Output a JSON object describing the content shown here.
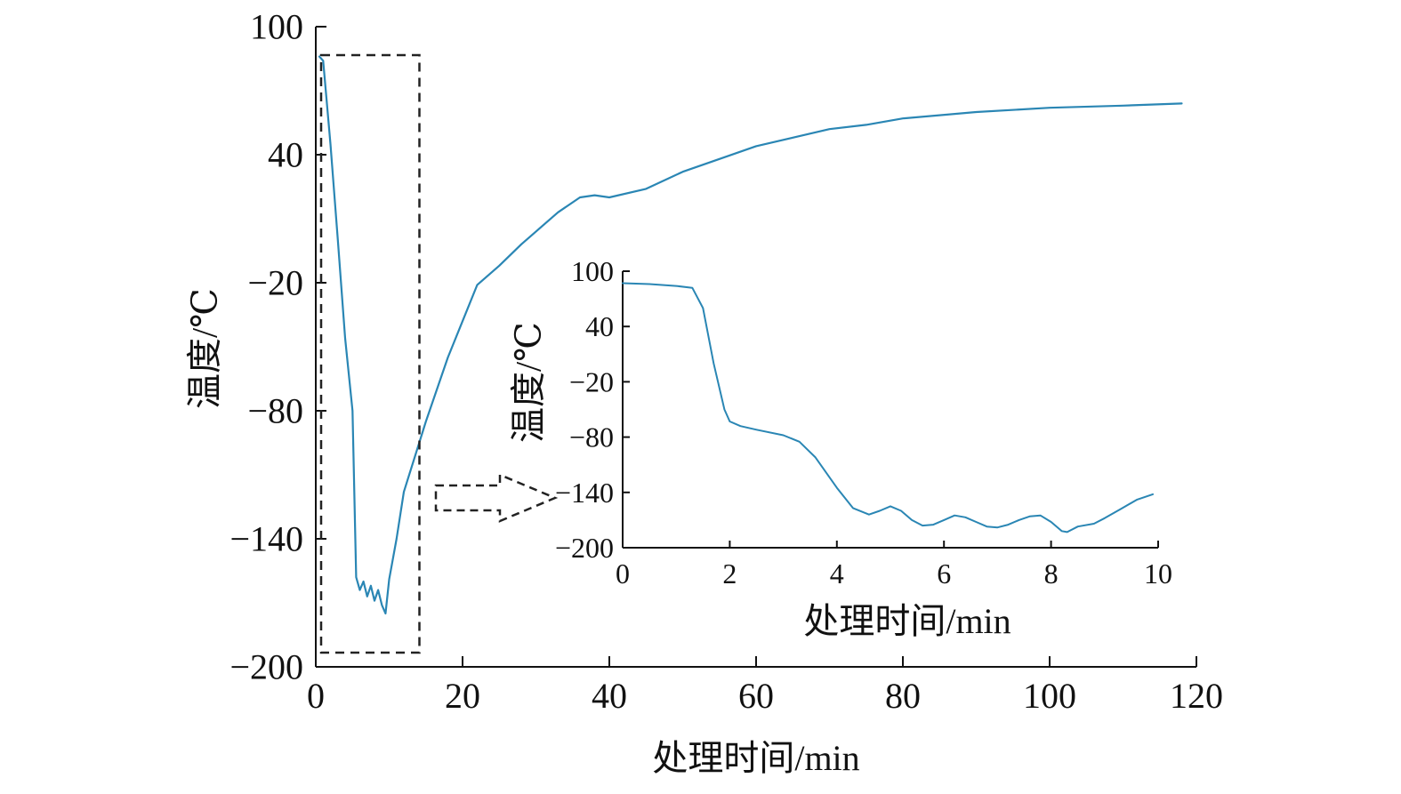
{
  "chart_data": [
    {
      "type": "line",
      "xlabel": "处理时间/min",
      "ylabel": "温度/℃",
      "xlim": [
        0,
        120
      ],
      "ylim": [
        -200,
        100
      ],
      "xticks": [
        0,
        20,
        40,
        60,
        80,
        100,
        120
      ],
      "yticks": [
        100,
        40,
        -20,
        -80,
        -140,
        -200
      ],
      "xtick_labels": [
        "0",
        "20",
        "40",
        "60",
        "80",
        "100",
        "120"
      ],
      "ytick_labels": [
        "100",
        "40",
        "−20",
        "−80",
        "−140",
        "−200"
      ],
      "grid": false,
      "line_color": "#2a86b4",
      "highlight": {
        "shape": "dashed-rectangle",
        "x_range": [
          0,
          10
        ]
      },
      "series": [
        {
          "x": [
            0.5,
            1,
            2,
            3,
            4,
            5,
            5.5,
            6,
            6.5,
            7,
            7.5,
            8,
            8.5,
            9,
            9.5,
            10,
            11,
            12,
            15,
            18,
            20,
            22,
            25,
            28,
            30,
            33,
            36,
            38,
            40,
            45,
            50,
            55,
            60,
            65,
            70,
            75,
            80,
            90,
            100,
            110,
            118
          ],
          "y": [
            86,
            84,
            45,
            0,
            -46,
            -80,
            -158,
            -164,
            -160,
            -167,
            -162,
            -169,
            -164,
            -171,
            -175,
            -159,
            -140,
            -118,
            -85,
            -55,
            -38,
            -21,
            -12,
            -2,
            4,
            13,
            20,
            21,
            20,
            24,
            32,
            38,
            44,
            48,
            52,
            54,
            57,
            60,
            62,
            63,
            64
          ]
        }
      ]
    },
    {
      "type": "line",
      "inset": true,
      "xlabel": "处理时间/min",
      "ylabel": "温度/℃",
      "xlim": [
        0,
        10
      ],
      "ylim": [
        -200,
        100
      ],
      "xticks": [
        0,
        2,
        4,
        6,
        8,
        10
      ],
      "yticks": [
        100,
        40,
        -20,
        -80,
        -140,
        -200
      ],
      "xtick_labels": [
        "0",
        "2",
        "4",
        "6",
        "8",
        "10"
      ],
      "ytick_labels": [
        "100",
        "40",
        "−20",
        "−80",
        "−140",
        "−200"
      ],
      "grid": false,
      "line_color": "#2a86b4",
      "series": [
        {
          "x": [
            0,
            0.5,
            1,
            1.3,
            1.5,
            1.7,
            1.9,
            2,
            2.2,
            2.5,
            3,
            3.3,
            3.6,
            4,
            4.3,
            4.6,
            4.8,
            5,
            5.2,
            5.4,
            5.6,
            5.8,
            6,
            6.2,
            6.4,
            6.6,
            6.8,
            7,
            7.2,
            7.4,
            7.6,
            7.8,
            8,
            8.2,
            8.3,
            8.5,
            8.8,
            9,
            9.3,
            9.6,
            9.9
          ],
          "y": [
            87,
            86,
            84,
            82,
            60,
            0,
            -50,
            -63,
            -68,
            -72,
            -78,
            -85,
            -102,
            -135,
            -157,
            -164,
            -160,
            -155,
            -160,
            -170,
            -176,
            -175,
            -170,
            -165,
            -167,
            -172,
            -177,
            -178,
            -175,
            -170,
            -166,
            -165,
            -172,
            -182,
            -183,
            -177,
            -174,
            -168,
            -158,
            -148,
            -142
          ]
        }
      ]
    }
  ],
  "arrow": {
    "direction": "right",
    "style": "dashed-outline"
  }
}
